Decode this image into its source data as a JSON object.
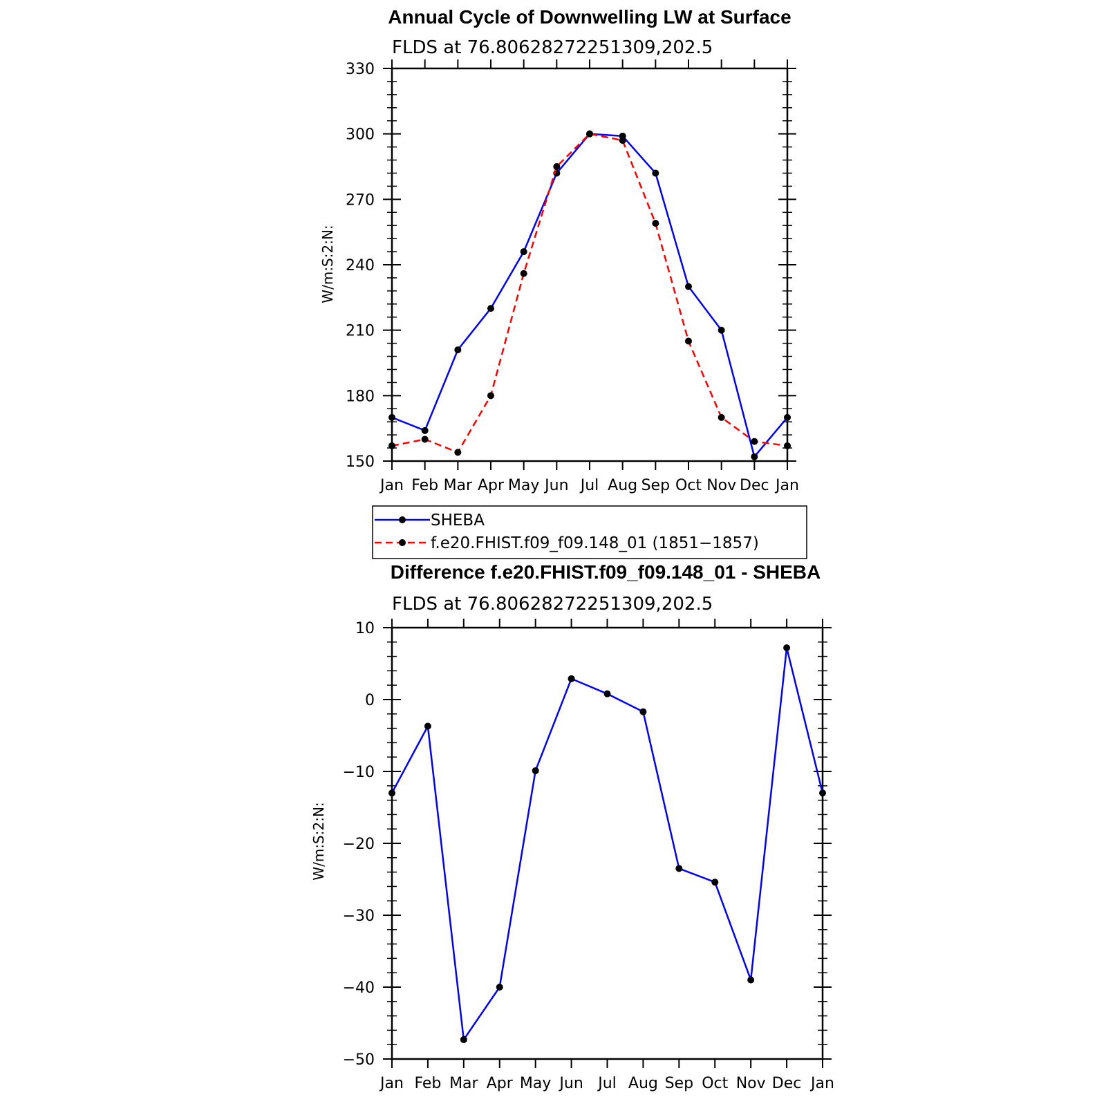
{
  "chart_data": [
    {
      "type": "line",
      "title": "Annual Cycle of Downwelling LW at Surface",
      "subtitle": "FLDS at 76.80628272251309,202.5",
      "ylabel": "W/m:S:2:N:",
      "xlabel": "",
      "categories": [
        "Jan",
        "Feb",
        "Mar",
        "Apr",
        "May",
        "Jun",
        "Jul",
        "Aug",
        "Sep",
        "Oct",
        "Nov",
        "Dec",
        "Jan"
      ],
      "ylim": [
        150,
        330
      ],
      "yticks": [
        150,
        180,
        210,
        240,
        270,
        300,
        330
      ],
      "ytick_labels": [
        "150",
        "180",
        "210",
        "240",
        "270",
        "300",
        "330"
      ],
      "grid": false,
      "legend_position": "below",
      "series": [
        {
          "name": "SHEBA",
          "color": "#0000ff",
          "dash": "solid",
          "values": [
            170,
            164,
            201,
            220,
            246,
            282,
            300,
            299,
            282,
            230,
            210,
            152,
            170
          ]
        },
        {
          "name": "f.e20.FHIST.f09_f09.148_01 (1851−1857)",
          "color": "#ff0000",
          "dash": "dashed",
          "values": [
            157,
            160,
            154,
            180,
            236,
            285,
            300,
            297,
            259,
            205,
            170,
            159,
            157
          ]
        }
      ]
    },
    {
      "type": "line",
      "title": "Difference f.e20.FHIST.f09_f09.148_01 - SHEBA",
      "subtitle": "FLDS at 76.80628272251309,202.5",
      "ylabel": "W/m:S:2:N:",
      "xlabel": "",
      "categories": [
        "Jan",
        "Feb",
        "Mar",
        "Apr",
        "May",
        "Jun",
        "Jul",
        "Aug",
        "Sep",
        "Oct",
        "Nov",
        "Dec",
        "Jan"
      ],
      "ylim": [
        -50,
        10
      ],
      "yticks": [
        -50,
        -40,
        -30,
        -20,
        -10,
        0,
        10
      ],
      "ytick_labels": [
        "−50",
        "−40",
        "−30",
        "−20",
        "−10",
        "0",
        "10"
      ],
      "grid": false,
      "series": [
        {
          "color": "#0000ff",
          "dash": "solid",
          "values": [
            -13,
            -3.7,
            -47.3,
            -40,
            -9.9,
            2.9,
            0.8,
            -1.7,
            -23.5,
            -25.4,
            -39,
            7.2,
            -13
          ]
        }
      ]
    }
  ]
}
